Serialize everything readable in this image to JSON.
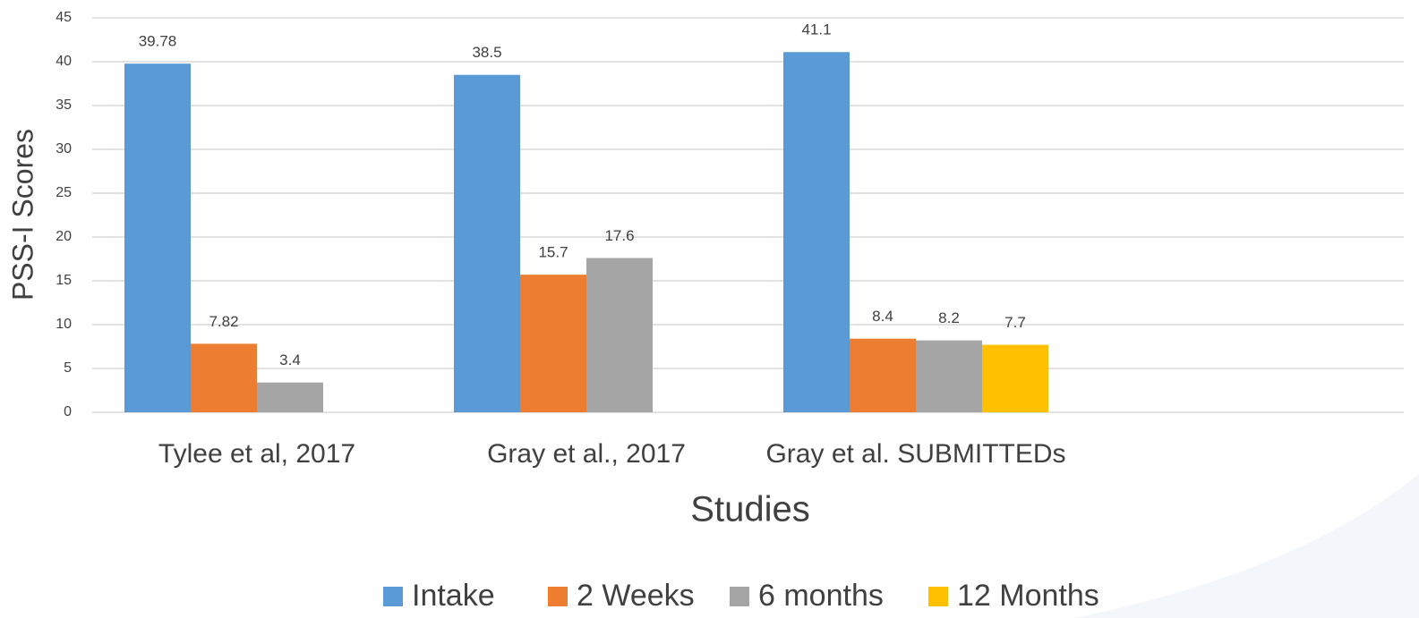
{
  "chart_data": {
    "type": "bar",
    "x_label": "Studies",
    "y_label": "PSS-I Scores",
    "categories": [
      "Tylee et al, 2017",
      "Gray et al., 2017",
      "Gray et al. SUBMITTEDs",
      null
    ],
    "series": [
      {
        "name": "Intake",
        "color": "#5b9bd5",
        "values": [
          39.78,
          38.5,
          41.1,
          null
        ]
      },
      {
        "name": "2 Weeks",
        "color": "#ed7d31",
        "values": [
          7.82,
          15.7,
          8.4,
          null
        ]
      },
      {
        "name": "6 months",
        "color": "#a5a5a5",
        "values": [
          3.4,
          17.6,
          8.2,
          null
        ]
      },
      {
        "name": "12 Months",
        "color": "#ffc000",
        "values": [
          null,
          null,
          7.7,
          null
        ]
      }
    ],
    "ylim": [
      0,
      45
    ],
    "yticks": [
      0,
      5,
      10,
      15,
      20,
      25,
      30,
      35,
      40,
      45
    ],
    "grid": true,
    "legend": "bottom"
  }
}
